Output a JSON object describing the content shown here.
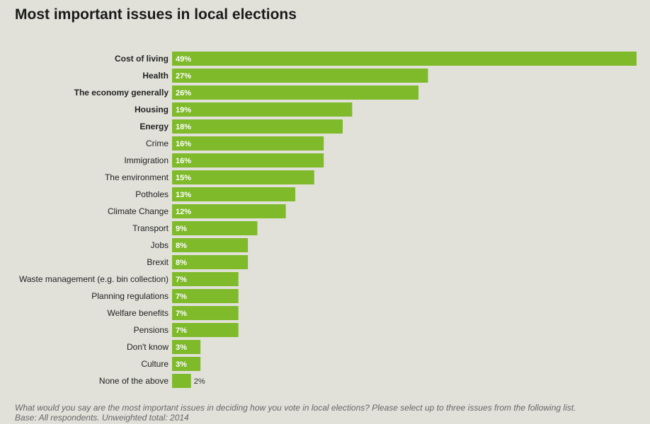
{
  "title": "Most important issues in local elections",
  "footnote": {
    "question": "What would you say are the most important issues in deciding how you vote in local elections? Please select up to three issues from the following list.",
    "base": "Base: All respondents. Unweighted total: 2014"
  },
  "colors": {
    "bar": "#7fba2a",
    "background": "#e1e1da"
  },
  "chart_data": {
    "type": "bar",
    "orientation": "horizontal",
    "value_suffix": "%",
    "categories": [
      "Cost of living",
      "Health",
      "The economy generally",
      "Housing",
      "Energy",
      "Crime",
      "Immigration",
      "The environment",
      "Potholes",
      "Climate Change",
      "Transport",
      "Jobs",
      "Brexit",
      "Waste management (e.g. bin collection)",
      "Planning regulations",
      "Welfare benefits",
      "Pensions",
      "Don't know",
      "Culture",
      "None of the above"
    ],
    "values": [
      49,
      27,
      26,
      19,
      18,
      16,
      16,
      15,
      13,
      12,
      9,
      8,
      8,
      7,
      7,
      7,
      7,
      3,
      3,
      2
    ],
    "bold_categories": [
      "Cost of living",
      "Health",
      "The economy generally",
      "Housing",
      "Energy"
    ],
    "xlim": [
      0,
      49
    ],
    "grid": false,
    "legend": "none"
  }
}
